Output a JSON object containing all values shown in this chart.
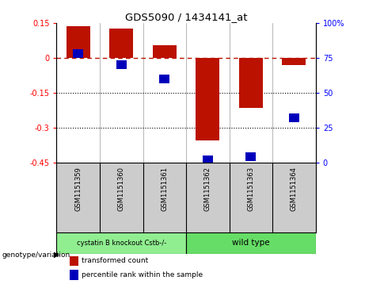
{
  "title": "GDS5090 / 1434141_at",
  "samples": [
    "GSM1151359",
    "GSM1151360",
    "GSM1151361",
    "GSM1151362",
    "GSM1151363",
    "GSM1151364"
  ],
  "red_values": [
    0.135,
    0.125,
    0.055,
    -0.355,
    -0.215,
    -0.03
  ],
  "blue_values_pct": [
    78,
    70,
    60,
    2,
    4,
    32
  ],
  "ylim_left": [
    -0.45,
    0.15
  ],
  "ylim_right": [
    0,
    100
  ],
  "yticks_left": [
    0.15,
    0.0,
    -0.15,
    -0.3,
    -0.45
  ],
  "yticks_right": [
    100,
    75,
    50,
    25,
    0
  ],
  "ytick_labels_left": [
    "0.15",
    "0",
    "-0.15",
    "-0.3",
    "-0.45"
  ],
  "ytick_labels_right": [
    "100%",
    "75",
    "50",
    "25",
    "0"
  ],
  "hline_y": 0.0,
  "dotted_lines": [
    -0.15,
    -0.3
  ],
  "groups": [
    {
      "label": "cystatin B knockout Cstb-/-",
      "samples": [
        0,
        1,
        2
      ],
      "color": "#90ee90"
    },
    {
      "label": "wild type",
      "samples": [
        3,
        4,
        5
      ],
      "color": "#66dd66"
    }
  ],
  "group_label": "genotype/variation",
  "bar_color_red": "#bb1100",
  "bar_color_blue": "#0000bb",
  "bg_color": "#ffffff",
  "plot_bg": "#ffffff",
  "legend_red": "transformed count",
  "legend_blue": "percentile rank within the sample",
  "bar_width": 0.55
}
